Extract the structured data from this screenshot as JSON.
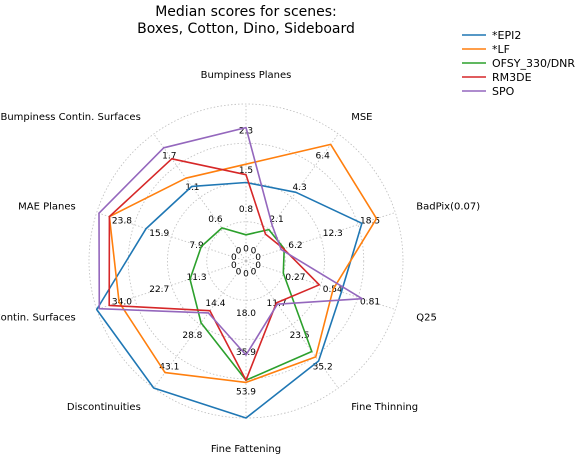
{
  "chart_data": {
    "type": "radar",
    "title_lines": [
      "Median scores for scenes:",
      "Boxes, Cotton, Dino, Sideboard"
    ],
    "grid": true,
    "legend_position": "top-right",
    "axes": [
      {
        "label": "Bumpiness Planes",
        "ticks": [
          "0",
          "0.8",
          "1.5",
          "2.3"
        ],
        "max": 3.0
      },
      {
        "label": "MSE",
        "ticks": [
          "0",
          "2.1",
          "4.3",
          "6.4"
        ],
        "max": 8.5
      },
      {
        "label": "BadPix(0.07)",
        "ticks": [
          "0",
          "6.2",
          "12.3",
          "18.5"
        ],
        "max": 24.6
      },
      {
        "label": "Q25",
        "ticks": [
          "0",
          "0.27",
          "0.54",
          "0.81"
        ],
        "max": 1.08
      },
      {
        "label": "Fine Thinning",
        "ticks": [
          "0",
          "11.7",
          "23.5",
          "35.2"
        ],
        "max": 47.0
      },
      {
        "label": "Fine Fattening",
        "ticks": [
          "0",
          "18.0",
          "35.9",
          "53.9"
        ],
        "max": 71.8
      },
      {
        "label": "Discontinuities",
        "ticks": [
          "0",
          "14.4",
          "28.8",
          "43.1"
        ],
        "max": 57.5
      },
      {
        "label": "MAE Contin. Surfaces",
        "ticks": [
          "0",
          "11.3",
          "22.7",
          "34.0"
        ],
        "max": 45.3
      },
      {
        "label": "MAE Planes",
        "ticks": [
          "0",
          "7.9",
          "15.9",
          "23.8"
        ],
        "max": 31.7
      },
      {
        "label": "Bumpiness Contin. Surfaces",
        "ticks": [
          "0",
          "0.6",
          "1.1",
          "1.7"
        ],
        "max": 2.3
      }
    ],
    "series": [
      {
        "name": "*EPI2",
        "color": "#1f77b4",
        "values": [
          1.5,
          4.6,
          19.1,
          0.69,
          37.0,
          71.8,
          57.5,
          45.3,
          21.2,
          1.35
        ]
      },
      {
        "name": "*LF",
        "color": "#ff7f0e",
        "values": [
          1.85,
          7.8,
          21.5,
          0.63,
          35.5,
          55.5,
          50.5,
          38.5,
          29.0,
          1.5
        ]
      },
      {
        "name": "OFSY_330/DNR",
        "color": "#2ca02c",
        "values": [
          0.5,
          2.1,
          6.3,
          0.27,
          33.5,
          54.5,
          28.0,
          17.0,
          9.5,
          0.6
        ]
      },
      {
        "name": "RM3DE",
        "color": "#d62728",
        "values": [
          1.65,
          1.8,
          6.2,
          0.53,
          15.5,
          54.5,
          22.5,
          41.5,
          29.0,
          1.85
        ]
      },
      {
        "name": "SPO",
        "color": "#9467bd",
        "values": [
          2.55,
          2.4,
          5.8,
          0.84,
          16.0,
          43.0,
          23.5,
          44.5,
          31.2,
          2.05
        ]
      }
    ]
  }
}
